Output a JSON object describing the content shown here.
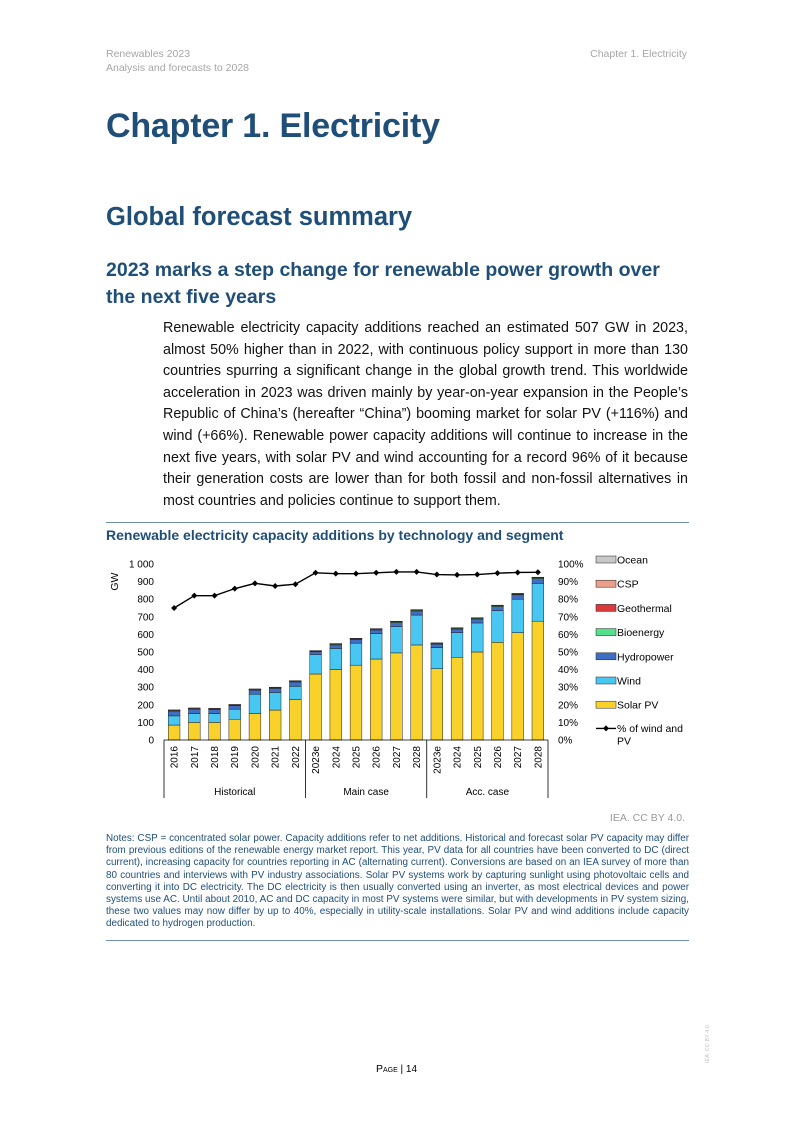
{
  "header": {
    "report_title": "Renewables 2023",
    "report_subtitle": "Analysis and forecasts to 2028",
    "chapter": "Chapter 1. Electricity"
  },
  "chapter_title": "Chapter 1. Electricity",
  "section_title": "Global forecast summary",
  "subsection_title": "2023 marks a step change for renewable power growth over the next five years",
  "paragraph": "Renewable electricity capacity additions reached an estimated 507 GW in 2023, almost 50% higher than in 2022, with continuous policy support in more than 130 countries spurring a significant change in the global growth trend. This worldwide acceleration in 2023 was driven mainly by year-on-year expansion in the People’s Republic of China’s (hereafter “China”) booming market for solar PV (+116%) and wind (+66%). Renewable power capacity additions will continue to increase in the next five years, with solar PV and wind accounting for a record 96% of it because their generation costs are lower than for both fossil and non-fossil alternatives in most countries and policies continue to support them.",
  "figure": {
    "title": "Renewable electricity capacity additions by technology and segment",
    "credit": "IEA. CC BY 4.0.",
    "notes": "Notes: CSP = concentrated solar power. Capacity additions refer to net additions. Historical and forecast solar PV capacity may differ from previous editions of the renewable energy market report. This year, PV data for all countries have been converted to DC (direct current), increasing capacity for countries reporting in AC (alternating current). Conversions are based on an IEA survey of more than 80 countries and interviews with PV industry associations. Solar PV systems work by capturing sunlight using photovoltaic cells and converting it into DC electricity. The DC electricity is then usually converted using an inverter, as most electrical devices and power systems use AC. Until about 2010, AC and DC capacity in most PV systems were similar, but with developments in PV system sizing, these two values may now differ by up to 40%, especially in utility-scale installations. Solar PV and wind additions include capacity dedicated to hydrogen production."
  },
  "chart_data": {
    "type": "bar",
    "stacked": true,
    "categories": [
      "2016",
      "2017",
      "2018",
      "2019",
      "2020",
      "2021",
      "2022",
      "2023e",
      "2024",
      "2025",
      "2026",
      "2027",
      "2028",
      "2023e",
      "2024",
      "2025",
      "2026",
      "2027",
      "2028"
    ],
    "groups": [
      {
        "label": "Historical",
        "count": 7
      },
      {
        "label": "Main case",
        "count": 6
      },
      {
        "label": "Acc. case",
        "count": 6
      }
    ],
    "ylabel": "GW",
    "ylim": [
      0,
      1000
    ],
    "yticks": [
      "0",
      "100",
      "200",
      "300",
      "400",
      "500",
      "600",
      "700",
      "800",
      "900",
      "1 000"
    ],
    "y2lim": [
      0,
      100
    ],
    "y2ticks": [
      "0%",
      "10%",
      "20%",
      "30%",
      "40%",
      "50%",
      "60%",
      "70%",
      "80%",
      "90%",
      "100%"
    ],
    "legend_position": "right",
    "grid": false,
    "series": [
      {
        "name": "Solar PV",
        "color": "#f8d12b",
        "values": [
          85,
          100,
          100,
          118,
          150,
          170,
          230,
          375,
          400,
          425,
          460,
          495,
          540,
          405,
          470,
          500,
          555,
          610,
          675
        ]
      },
      {
        "name": "Wind",
        "color": "#47c7f1",
        "values": [
          52,
          50,
          50,
          57,
          110,
          100,
          75,
          110,
          120,
          125,
          145,
          150,
          170,
          120,
          140,
          165,
          180,
          190,
          215
        ]
      },
      {
        "name": "Hydropower",
        "color": "#3f6fc5",
        "values": [
          27,
          25,
          23,
          20,
          23,
          23,
          25,
          16,
          20,
          20,
          20,
          22,
          23,
          20,
          20,
          22,
          23,
          25,
          27
        ]
      },
      {
        "name": "Bioenergy",
        "color": "#55e08c",
        "values": [
          5,
          5,
          5,
          5,
          5,
          5,
          5,
          5,
          5,
          5,
          5,
          5,
          5,
          5,
          5,
          5,
          5,
          5,
          5
        ]
      },
      {
        "name": "Geothermal",
        "color": "#d93a3a",
        "values": [
          1,
          1,
          1,
          1,
          1,
          1,
          1,
          1,
          2,
          2,
          2,
          2,
          2,
          1,
          2,
          2,
          2,
          2,
          2
        ]
      },
      {
        "name": "CSP",
        "color": "#e8a08a",
        "values": [
          1,
          1,
          1,
          1,
          1,
          1,
          1,
          1,
          1,
          1,
          1,
          1,
          1,
          1,
          1,
          1,
          1,
          1,
          1
        ]
      },
      {
        "name": "Ocean",
        "color": "#c8c8c8",
        "values": [
          0,
          0,
          0,
          0,
          0,
          0,
          0,
          0,
          0,
          0,
          0,
          0,
          0,
          0,
          0,
          0,
          0,
          0,
          0
        ]
      }
    ],
    "line_series": {
      "name": "% of wind and PV",
      "axis": "right",
      "color": "#000000",
      "values": [
        75,
        82,
        82,
        86,
        89,
        87.5,
        88.5,
        95,
        94.5,
        94.5,
        95,
        95.5,
        95.5,
        94,
        93.8,
        94,
        94.8,
        95.2,
        95.3
      ]
    }
  },
  "footer": {
    "page_label": "Page",
    "page_number": "14"
  },
  "side_mark": "IEA. CC BY 4.0."
}
